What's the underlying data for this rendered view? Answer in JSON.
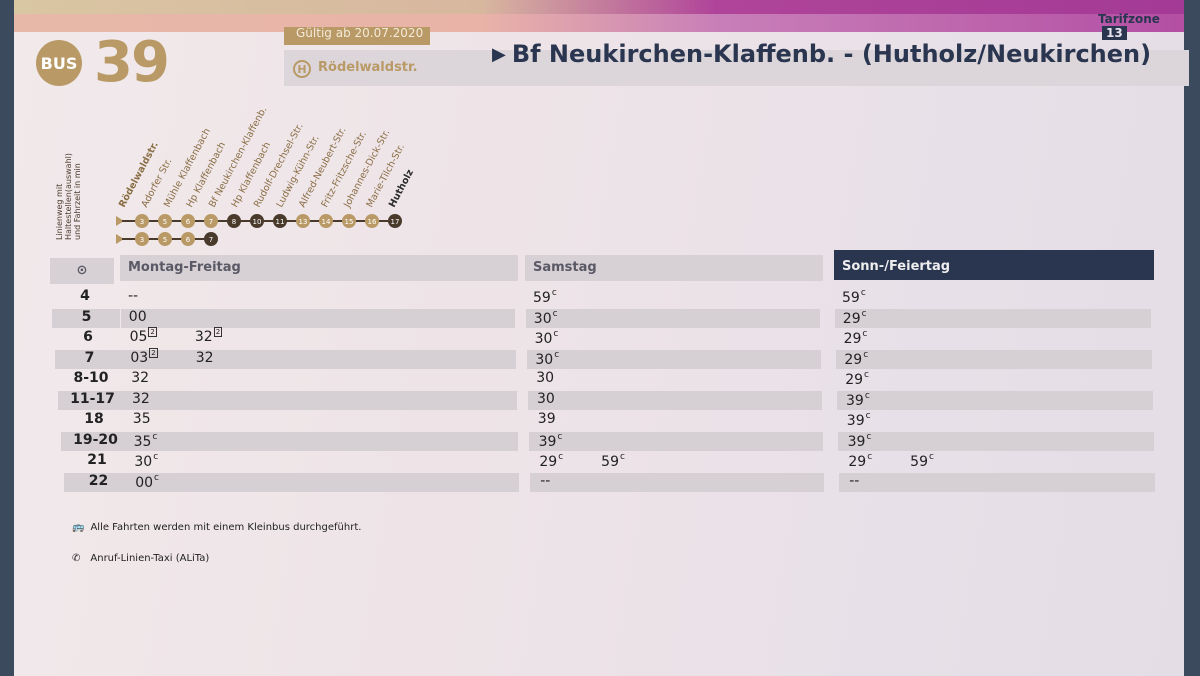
{
  "header": {
    "mode": "BUS",
    "line": "39",
    "valid_from": "Gültig ab 20.07.2020",
    "stop_symbol": "H",
    "stop": "Rödelwaldstr.",
    "destination": "Bf Neukirchen-Klaffenb. - (Hutholz/Neukirchen)",
    "tariff_zone_label": "Tarifzone",
    "tariff_zone": "13"
  },
  "route": {
    "legend": [
      "Linienweg mit",
      "Haltestellen(auswahl)",
      "und Fahrzeit in min"
    ],
    "stops": [
      "Rödelwaldstr.",
      "Adorfer Str.",
      "Mühle Klaffenbach",
      "Hp Klaffenbach",
      "Bf Neukirchen-Klaffenb.",
      "Hp Klaffenbach",
      "Rudolf-Drechsel-Str.",
      "Ludwig-Kühn-Str.",
      "Alfred-Neubert-Str.",
      "Fritz-Fritzsche-Str.",
      "Johannes-Dick-Str.",
      "Marie-Tilch-Str.",
      "Hutholz"
    ],
    "times_a": [
      "3",
      "5",
      "6",
      "7",
      "8",
      "10",
      "11",
      "13",
      "14",
      "15",
      "16",
      "17"
    ],
    "times_b": [
      "3",
      "5",
      "6",
      "7"
    ],
    "colors": {
      "gold": "#b99a66",
      "dark": "#4a3a2c"
    }
  },
  "table": {
    "clock_icon": "clock-icon",
    "columns": [
      "Montag-Freitag",
      "Samstag",
      "Sonn-/Feiertag"
    ],
    "rows": [
      {
        "hour": "4",
        "mf": [
          {
            "t": "--"
          }
        ],
        "sa": [
          {
            "t": "59",
            "m": "c"
          }
        ],
        "so": [
          {
            "t": "59",
            "m": "c"
          }
        ]
      },
      {
        "hour": "5",
        "mf": [
          {
            "t": "00"
          }
        ],
        "sa": [
          {
            "t": "30",
            "m": "c"
          }
        ],
        "so": [
          {
            "t": "29",
            "m": "c"
          }
        ]
      },
      {
        "hour": "6",
        "mf": [
          {
            "t": "05",
            "m": "2"
          },
          {
            "t": "32",
            "m": "2"
          }
        ],
        "sa": [
          {
            "t": "30",
            "m": "c"
          }
        ],
        "so": [
          {
            "t": "29",
            "m": "c"
          }
        ]
      },
      {
        "hour": "7",
        "mf": [
          {
            "t": "03",
            "m": "2"
          },
          {
            "t": "32"
          }
        ],
        "sa": [
          {
            "t": "30",
            "m": "c"
          }
        ],
        "so": [
          {
            "t": "29",
            "m": "c"
          }
        ]
      },
      {
        "hour": "8-10",
        "mf": [
          {
            "t": "32"
          }
        ],
        "sa": [
          {
            "t": "30"
          }
        ],
        "so": [
          {
            "t": "29",
            "m": "c"
          }
        ]
      },
      {
        "hour": "11-17",
        "mf": [
          {
            "t": "32"
          }
        ],
        "sa": [
          {
            "t": "30"
          }
        ],
        "so": [
          {
            "t": "39",
            "m": "c"
          }
        ]
      },
      {
        "hour": "18",
        "mf": [
          {
            "t": "35"
          }
        ],
        "sa": [
          {
            "t": "39"
          }
        ],
        "so": [
          {
            "t": "39",
            "m": "c"
          }
        ]
      },
      {
        "hour": "19-20",
        "mf": [
          {
            "t": "35",
            "m": "c"
          }
        ],
        "sa": [
          {
            "t": "39",
            "m": "c"
          }
        ],
        "so": [
          {
            "t": "39",
            "m": "c"
          }
        ]
      },
      {
        "hour": "21",
        "mf": [
          {
            "t": "30",
            "m": "c"
          }
        ],
        "sa": [
          {
            "t": "29",
            "m": "c"
          },
          {
            "t": "59",
            "m": "c"
          }
        ],
        "so": [
          {
            "t": "29",
            "m": "c"
          },
          {
            "t": "59",
            "m": "c"
          }
        ]
      },
      {
        "hour": "22",
        "mf": [
          {
            "t": "00",
            "m": "c"
          }
        ],
        "sa": [
          {
            "t": "--"
          }
        ],
        "so": [
          {
            "t": "--"
          }
        ]
      }
    ]
  },
  "notes": [
    {
      "icon": "minibus-icon",
      "text": "Alle Fahrten werden mit einem Kleinbus durchgeführt."
    },
    {
      "icon": "phone-icon",
      "text": "Anruf-Linien-Taxi (ALiTa)"
    }
  ]
}
